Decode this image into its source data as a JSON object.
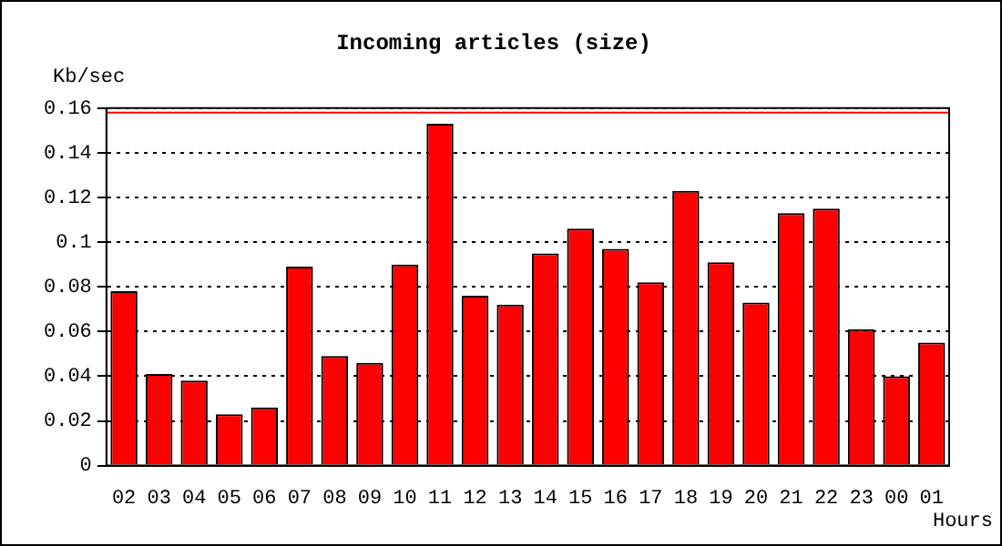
{
  "chart_data": {
    "type": "bar",
    "title": "Incoming articles (size)",
    "xlabel": "Hours",
    "ylabel": "Kb/sec",
    "categories": [
      "02",
      "03",
      "04",
      "05",
      "06",
      "07",
      "08",
      "09",
      "10",
      "11",
      "12",
      "13",
      "14",
      "15",
      "16",
      "17",
      "18",
      "19",
      "20",
      "21",
      "22",
      "23",
      "00",
      "01"
    ],
    "values": [
      0.078,
      0.041,
      0.038,
      0.023,
      0.026,
      0.089,
      0.049,
      0.046,
      0.09,
      0.153,
      0.076,
      0.072,
      0.095,
      0.106,
      0.097,
      0.082,
      0.123,
      0.091,
      0.073,
      0.113,
      0.115,
      0.061,
      0.04,
      0.055
    ],
    "color": "#ff0000",
    "ylim": [
      0,
      0.16
    ],
    "yticks": [
      0,
      0.02,
      0.04,
      0.06,
      0.08,
      0.1,
      0.12,
      0.14,
      0.16
    ],
    "grid": "y",
    "ref_lines": [
      {
        "axis": "y",
        "value": 0.158,
        "color": "#ff0000"
      }
    ]
  }
}
